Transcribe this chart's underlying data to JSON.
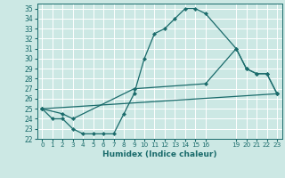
{
  "title": "",
  "xlabel": "Humidex (Indice chaleur)",
  "ylabel": "",
  "bg_color": "#cce8e4",
  "line_color": "#1a6b6b",
  "grid_color": "#ffffff",
  "ylim": [
    22,
    35.5
  ],
  "xlim": [
    -0.5,
    23.5
  ],
  "yticks": [
    22,
    23,
    24,
    25,
    26,
    27,
    28,
    29,
    30,
    31,
    32,
    33,
    34,
    35
  ],
  "xticks": [
    0,
    1,
    2,
    3,
    4,
    5,
    6,
    7,
    8,
    9,
    10,
    11,
    12,
    13,
    14,
    15,
    16,
    19,
    20,
    21,
    22,
    23
  ],
  "xtick_labels": [
    "0",
    "1",
    "2",
    "3",
    "4",
    "5",
    "6",
    "7",
    "8",
    "9",
    "10",
    "11",
    "12",
    "13",
    "14",
    "15",
    "16",
    "19",
    "20",
    "21",
    "22",
    "23"
  ],
  "series": [
    {
      "x": [
        0,
        1,
        2,
        3,
        4,
        5,
        6,
        7,
        8,
        9,
        10,
        11,
        12,
        13,
        14,
        15,
        16,
        19,
        20,
        21,
        22,
        23
      ],
      "y": [
        25,
        24,
        24,
        23,
        22.5,
        22.5,
        22.5,
        22.5,
        24.5,
        26.5,
        30,
        32.5,
        33,
        34,
        35,
        35,
        34.5,
        31,
        29,
        28.5,
        28.5,
        26.5
      ]
    },
    {
      "x": [
        0,
        2,
        3,
        9,
        16,
        19,
        20,
        21,
        22,
        23
      ],
      "y": [
        25,
        24.5,
        24,
        27,
        27.5,
        31,
        29,
        28.5,
        28.5,
        26.5
      ]
    },
    {
      "x": [
        0,
        23
      ],
      "y": [
        25,
        26.5
      ]
    }
  ]
}
